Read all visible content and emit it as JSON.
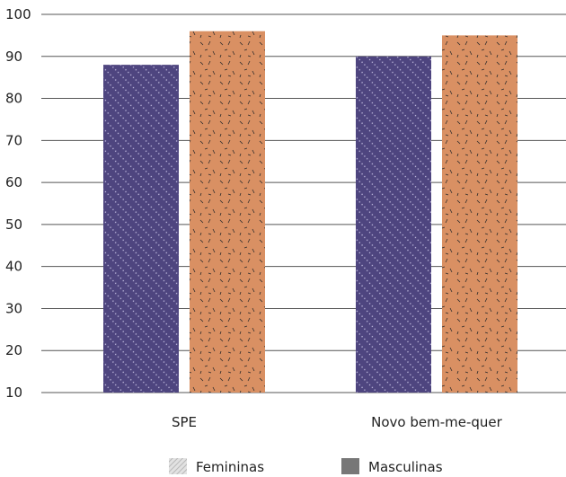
{
  "chart_data": {
    "type": "bar",
    "categories": [
      "SPE",
      "Novo bem-me-quer"
    ],
    "series": [
      {
        "name": "Femininas",
        "values": [
          88,
          90
        ],
        "color": "#4e457f",
        "pattern": "diagonal-dots"
      },
      {
        "name": "Masculinas",
        "values": [
          96,
          95
        ],
        "color": "#d99063",
        "pattern": "dashes"
      }
    ],
    "yticks": [
      10,
      20,
      30,
      40,
      50,
      60,
      70,
      80,
      90,
      100
    ],
    "ylim": [
      10,
      100
    ],
    "grid": true,
    "legend": {
      "position": "bottom-center",
      "labels": [
        "Femininas",
        "Masculinas"
      ],
      "swatch_colors": [
        "#cfcfcf",
        "#777777"
      ]
    }
  }
}
